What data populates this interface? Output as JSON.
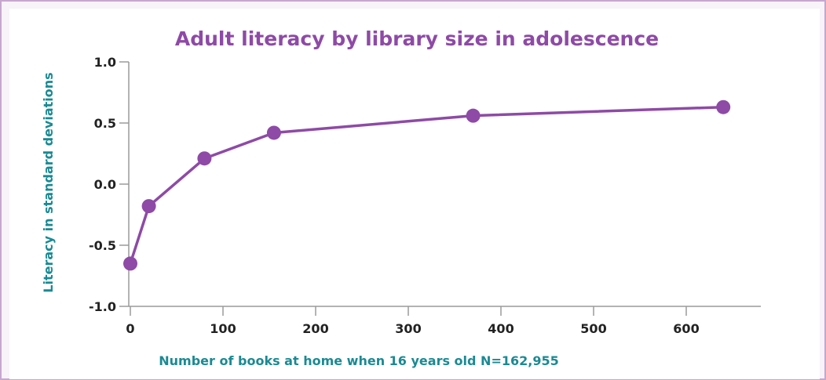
{
  "colors": {
    "accent": "#8e4aa6",
    "axis_label": "#1a8a93",
    "axis_line": "#9a9a9a",
    "tick_text": "#222222"
  },
  "chart_data": {
    "type": "line",
    "title": "Adult literacy by library size in adolescence",
    "xlabel": "Number of books at home when 16 years old  N=162,955",
    "ylabel": "Literacy in standard deviations",
    "xlim": [
      0,
      680
    ],
    "ylim": [
      -1.0,
      1.0
    ],
    "x_ticks": [
      0,
      100,
      200,
      300,
      400,
      500,
      600
    ],
    "x_tick_labels": [
      "0",
      "100",
      "200",
      "300",
      "400",
      "500",
      "600"
    ],
    "y_ticks": [
      -1.0,
      -0.5,
      0.0,
      0.5,
      1.0
    ],
    "y_tick_labels": [
      "-1.0",
      "-0.5",
      "0.0",
      "0.5",
      "1.0"
    ],
    "grid": false,
    "series": [
      {
        "x": [
          0,
          20,
          80,
          155,
          370,
          640
        ],
        "y": [
          -0.65,
          -0.18,
          0.21,
          0.42,
          0.56,
          0.63
        ]
      }
    ]
  }
}
